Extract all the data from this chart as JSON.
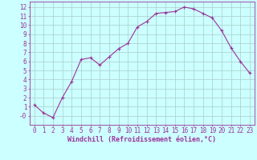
{
  "x": [
    0,
    1,
    2,
    3,
    4,
    5,
    6,
    7,
    8,
    9,
    10,
    11,
    12,
    13,
    14,
    15,
    16,
    17,
    18,
    19,
    20,
    21,
    22,
    23
  ],
  "y": [
    1.2,
    0.3,
    -0.2,
    2.0,
    3.8,
    6.2,
    6.4,
    5.6,
    6.5,
    7.4,
    8.0,
    9.8,
    10.4,
    11.3,
    11.4,
    11.5,
    12.0,
    11.8,
    11.3,
    10.8,
    9.4,
    7.5,
    6.0,
    4.7
  ],
  "line_color": "#993399",
  "marker": "+",
  "marker_size": 3,
  "marker_linewidth": 0.8,
  "line_width": 0.8,
  "bg_color": "#ccffff",
  "grid_color": "#aacccc",
  "axis_color": "#993399",
  "xlabel": "Windchill (Refroidissement éolien,°C)",
  "xlabel_fontsize": 6.0,
  "tick_fontsize": 5.5,
  "xlim": [
    -0.5,
    23.5
  ],
  "ylim": [
    -1.0,
    12.6
  ],
  "yticks": [
    0,
    1,
    2,
    3,
    4,
    5,
    6,
    7,
    8,
    9,
    10,
    11,
    12
  ],
  "ytick_labels": [
    "-0",
    "1",
    "2",
    "3",
    "4",
    "5",
    "6",
    "7",
    "8",
    "9",
    "10",
    "11",
    "12"
  ],
  "xticks": [
    0,
    1,
    2,
    3,
    4,
    5,
    6,
    7,
    8,
    9,
    10,
    11,
    12,
    13,
    14,
    15,
    16,
    17,
    18,
    19,
    20,
    21,
    22,
    23
  ]
}
